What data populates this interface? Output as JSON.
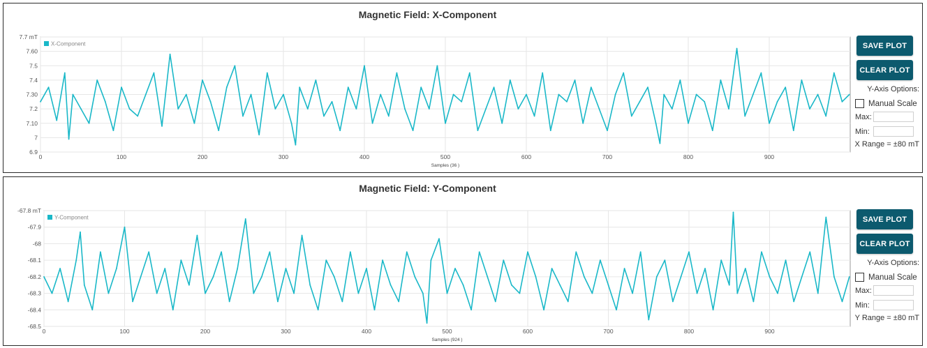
{
  "panels": [
    {
      "id": "x",
      "title": "Magnetic Field: X-Component",
      "save_label": "SAVE PLOT",
      "clear_label": "CLEAR PLOT",
      "y_axis_options_label": "Y-Axis Options:",
      "manual_scale_label": "Manual Scale",
      "max_label": "Max:",
      "min_label": "Min:",
      "range_text": "X Range = ±80 mT"
    },
    {
      "id": "y",
      "title": "Magnetic Field: Y-Component",
      "save_label": "SAVE PLOT",
      "clear_label": "CLEAR PLOT",
      "y_axis_options_label": "Y-Axis Options:",
      "manual_scale_label": "Manual Scale",
      "max_label": "Max:",
      "min_label": "Min:",
      "range_text": "Y Range = ±80 mT"
    }
  ],
  "colors": {
    "line": "#1ab8c8",
    "button": "#0c5a6e",
    "grid": "#e6e6e6"
  },
  "chart_data": [
    {
      "type": "line",
      "title": "Magnetic Field: X-Component",
      "xlabel": "Samples (36 )",
      "ylabel": "",
      "y_unit": "mT",
      "legend": "X-Component",
      "legend_position": "top-left",
      "grid": true,
      "xlim": [
        0,
        1000
      ],
      "ylim": [
        6.9,
        7.7
      ],
      "x_ticks": [
        0,
        100,
        200,
        300,
        400,
        500,
        600,
        700,
        800,
        900
      ],
      "y_ticks": [
        {
          "value": 6.9,
          "label": "6.9"
        },
        {
          "value": 7.0,
          "label": "7"
        },
        {
          "value": 7.1,
          "label": "7.10"
        },
        {
          "value": 7.2,
          "label": "7.2"
        },
        {
          "value": 7.3,
          "label": "7.30"
        },
        {
          "value": 7.4,
          "label": "7.4"
        },
        {
          "value": 7.5,
          "label": "7.5"
        },
        {
          "value": 7.6,
          "label": "7.60"
        },
        {
          "value": 7.7,
          "label": "7.7 mT"
        }
      ],
      "series": [
        {
          "name": "X-Component",
          "x": [
            0,
            10,
            20,
            30,
            35,
            40,
            50,
            60,
            70,
            80,
            90,
            100,
            110,
            120,
            130,
            140,
            150,
            160,
            170,
            180,
            190,
            200,
            210,
            220,
            230,
            240,
            250,
            260,
            270,
            280,
            290,
            300,
            310,
            315,
            320,
            330,
            340,
            350,
            360,
            370,
            380,
            390,
            400,
            410,
            420,
            430,
            440,
            450,
            460,
            470,
            480,
            490,
            500,
            510,
            520,
            530,
            540,
            550,
            560,
            570,
            580,
            590,
            600,
            610,
            620,
            630,
            640,
            650,
            660,
            670,
            680,
            690,
            700,
            710,
            720,
            730,
            740,
            750,
            760,
            765,
            770,
            780,
            790,
            800,
            810,
            820,
            830,
            840,
            850,
            860,
            870,
            880,
            890,
            900,
            910,
            920,
            930,
            940,
            950,
            960,
            970,
            980,
            990,
            999
          ],
          "values": [
            7.25,
            7.35,
            7.12,
            7.45,
            6.99,
            7.3,
            7.2,
            7.1,
            7.4,
            7.25,
            7.05,
            7.35,
            7.2,
            7.15,
            7.3,
            7.45,
            7.08,
            7.58,
            7.2,
            7.3,
            7.1,
            7.4,
            7.25,
            7.05,
            7.35,
            7.5,
            7.15,
            7.3,
            7.02,
            7.45,
            7.2,
            7.3,
            7.1,
            6.95,
            7.35,
            7.2,
            7.4,
            7.15,
            7.25,
            7.05,
            7.35,
            7.2,
            7.5,
            7.1,
            7.3,
            7.15,
            7.45,
            7.2,
            7.05,
            7.35,
            7.2,
            7.5,
            7.1,
            7.3,
            7.25,
            7.45,
            7.05,
            7.2,
            7.35,
            7.1,
            7.4,
            7.2,
            7.3,
            7.15,
            7.45,
            7.05,
            7.3,
            7.25,
            7.4,
            7.1,
            7.35,
            7.2,
            7.05,
            7.3,
            7.45,
            7.15,
            7.25,
            7.35,
            7.1,
            6.96,
            7.3,
            7.2,
            7.4,
            7.1,
            7.3,
            7.25,
            7.05,
            7.4,
            7.2,
            7.62,
            7.15,
            7.3,
            7.45,
            7.1,
            7.25,
            7.35,
            7.05,
            7.4,
            7.2,
            7.3,
            7.15,
            7.45,
            7.25,
            7.3
          ]
        }
      ]
    },
    {
      "type": "line",
      "title": "Magnetic Field: Y-Component",
      "xlabel": "Samples (924 )",
      "ylabel": "",
      "y_unit": "mT",
      "legend": "Y-Component",
      "legend_position": "top-left",
      "grid": true,
      "xlim": [
        0,
        1000
      ],
      "ylim": [
        -68.5,
        -67.8
      ],
      "x_ticks": [
        0,
        100,
        200,
        300,
        400,
        500,
        600,
        700,
        800,
        900
      ],
      "y_ticks": [
        {
          "value": -68.5,
          "label": "-68.5"
        },
        {
          "value": -68.4,
          "label": "-68.4"
        },
        {
          "value": -68.3,
          "label": "-68.3"
        },
        {
          "value": -68.2,
          "label": "-68.2"
        },
        {
          "value": -68.1,
          "label": "-68.1"
        },
        {
          "value": -68.0,
          "label": "-68"
        },
        {
          "value": -67.9,
          "label": "-67.9"
        },
        {
          "value": -67.8,
          "label": "-67.8 mT"
        }
      ],
      "series": [
        {
          "name": "Y-Component",
          "x": [
            0,
            10,
            20,
            30,
            40,
            45,
            50,
            60,
            70,
            80,
            90,
            100,
            110,
            120,
            130,
            140,
            150,
            160,
            170,
            180,
            190,
            200,
            210,
            220,
            230,
            240,
            250,
            260,
            270,
            280,
            290,
            300,
            310,
            320,
            330,
            340,
            350,
            360,
            370,
            380,
            390,
            400,
            410,
            420,
            430,
            440,
            450,
            460,
            470,
            475,
            480,
            490,
            500,
            510,
            520,
            530,
            540,
            550,
            560,
            570,
            580,
            590,
            600,
            610,
            620,
            630,
            640,
            650,
            660,
            670,
            680,
            690,
            700,
            710,
            720,
            730,
            740,
            750,
            760,
            770,
            780,
            790,
            800,
            810,
            820,
            830,
            840,
            850,
            855,
            860,
            870,
            880,
            890,
            900,
            910,
            920,
            930,
            940,
            950,
            960,
            970,
            980,
            990,
            999
          ],
          "values": [
            -68.2,
            -68.3,
            -68.15,
            -68.35,
            -68.1,
            -67.93,
            -68.25,
            -68.4,
            -68.05,
            -68.3,
            -68.15,
            -67.9,
            -68.35,
            -68.2,
            -68.05,
            -68.3,
            -68.15,
            -68.4,
            -68.1,
            -68.25,
            -67.95,
            -68.3,
            -68.2,
            -68.05,
            -68.35,
            -68.15,
            -67.85,
            -68.3,
            -68.2,
            -68.05,
            -68.35,
            -68.15,
            -68.3,
            -67.95,
            -68.25,
            -68.4,
            -68.1,
            -68.2,
            -68.35,
            -68.05,
            -68.3,
            -68.15,
            -68.4,
            -68.1,
            -68.25,
            -68.35,
            -68.05,
            -68.2,
            -68.3,
            -68.48,
            -68.1,
            -67.97,
            -68.3,
            -68.15,
            -68.25,
            -68.4,
            -68.05,
            -68.2,
            -68.35,
            -68.1,
            -68.25,
            -68.3,
            -68.05,
            -68.2,
            -68.4,
            -68.15,
            -68.25,
            -68.35,
            -68.05,
            -68.2,
            -68.3,
            -68.1,
            -68.25,
            -68.4,
            -68.15,
            -68.3,
            -68.05,
            -68.46,
            -68.2,
            -68.1,
            -68.35,
            -68.2,
            -68.05,
            -68.3,
            -68.15,
            -68.4,
            -68.1,
            -68.25,
            -67.81,
            -68.3,
            -68.15,
            -68.35,
            -68.05,
            -68.2,
            -68.3,
            -68.1,
            -68.35,
            -68.2,
            -68.05,
            -68.3,
            -67.84,
            -68.2,
            -68.35,
            -68.2
          ]
        }
      ]
    }
  ]
}
